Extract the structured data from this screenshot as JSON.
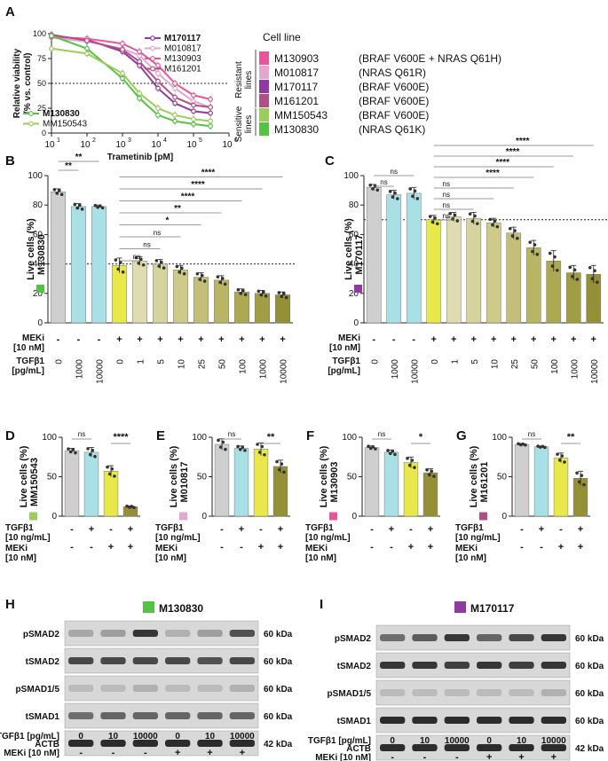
{
  "panel_letters": [
    "A",
    "B",
    "C",
    "D",
    "E",
    "F",
    "G",
    "H",
    "I"
  ],
  "colors": {
    "M130903": "#e8559a",
    "M010817": "#e0a8cf",
    "M170117": "#8e3aa0",
    "M161201": "#b04f85",
    "MM150543": "#9ccc5a",
    "M130830": "#56c245",
    "gray": "#cfcfcf",
    "cyan": "#a9e0e6",
    "yellow": "#e8e84a",
    "olive_light": "#d9d9a8",
    "olive_dark": "#8c8c34"
  },
  "legend": {
    "title": "Cell line",
    "resistant_label": "Resistant lines",
    "sensitive_label": "Sensitive lines",
    "entries": [
      {
        "name": "M130903",
        "mutation": "(BRAF V600E + NRAS Q61H)",
        "color": "#e8559a"
      },
      {
        "name": "M010817",
        "mutation": "(NRAS Q61R)",
        "color": "#e0a8cf"
      },
      {
        "name": "M170117",
        "mutation": "(BRAF V600E)",
        "color": "#8e3aa0"
      },
      {
        "name": "M161201",
        "mutation": "(BRAF V600E)",
        "color": "#b04f85"
      },
      {
        "name": "MM150543",
        "mutation": "(BRAF V600E)",
        "color": "#9ccc5a"
      },
      {
        "name": "M130830",
        "mutation": "(NRAS Q61K)",
        "color": "#56c245"
      }
    ]
  },
  "chart_data": [
    {
      "id": "A",
      "type": "line",
      "xlabel": "Trametinib [pM]",
      "ylabel": "Relative viability (% vs. control)",
      "x_scale": "log10",
      "xlim": [
        10,
        1000000
      ],
      "ylim": [
        0,
        100
      ],
      "xticks": [
        "10^1",
        "10^2",
        "10^3",
        "10^4",
        "10^5",
        "10^6"
      ],
      "yticks": [
        0,
        25,
        50,
        75,
        100
      ],
      "reference_line": 50,
      "series_labels_top": [
        "M170117",
        "M010817",
        "M130903",
        "M161201"
      ],
      "series_labels_bottom": [
        "M130830",
        "MM150543"
      ],
      "x": [
        10,
        100,
        1000,
        3000,
        10000,
        30000,
        100000,
        300000
      ],
      "series": [
        {
          "name": "M170117",
          "color": "#8e3aa0",
          "values": [
            98,
            94,
            82,
            68,
            45,
            30,
            22,
            20
          ]
        },
        {
          "name": "M010817",
          "color": "#e0a8cf",
          "values": [
            96,
            92,
            85,
            78,
            60,
            45,
            32,
            26
          ]
        },
        {
          "name": "M130903",
          "color": "#e8559a",
          "values": [
            97,
            95,
            90,
            82,
            68,
            50,
            38,
            34
          ]
        },
        {
          "name": "M161201",
          "color": "#b04f85",
          "values": [
            99,
            93,
            84,
            72,
            52,
            36,
            28,
            26
          ]
        },
        {
          "name": "M130830",
          "color": "#56c245",
          "values": [
            98,
            85,
            55,
            35,
            18,
            12,
            9,
            7
          ]
        },
        {
          "name": "MM150543",
          "color": "#9ccc5a",
          "values": [
            85,
            80,
            60,
            40,
            25,
            18,
            14,
            12
          ]
        }
      ]
    },
    {
      "id": "B",
      "type": "bar",
      "ylabel": "Live cells (%)",
      "cell_line": "M130830",
      "ylim": [
        0,
        100
      ],
      "yticks": [
        0,
        20,
        40,
        60,
        80,
        100
      ],
      "reference_line": 40,
      "row1_label": "MEKi [10 nM]",
      "row2_label": "TGFβ1 [pg/mL]",
      "meki": [
        "-",
        "-",
        "-",
        "+",
        "+",
        "+",
        "+",
        "+",
        "+",
        "+",
        "+",
        "+"
      ],
      "tgfb": [
        "0",
        "1000",
        "10000",
        "0",
        "1",
        "5",
        "10",
        "25",
        "50",
        "100",
        "1000",
        "10000"
      ],
      "values": [
        89,
        79,
        79,
        39,
        42,
        40,
        36,
        31,
        29,
        21,
        20,
        19
      ],
      "errors": [
        2,
        2,
        1,
        5,
        3,
        3,
        3,
        3,
        3,
        2,
        2,
        2
      ],
      "bar_colors": [
        "#cfcfcf",
        "#a9e0e6",
        "#a9e0e6",
        "#e8e84a",
        "#dedcb0",
        "#d6d49e",
        "#cdca8a",
        "#c3bf78",
        "#b8b565",
        "#aca953",
        "#a09d45",
        "#949037"
      ],
      "significance": [
        "**",
        "**",
        "ns",
        "ns",
        "ns",
        "*",
        "**",
        "****",
        "****",
        "****"
      ]
    },
    {
      "id": "C",
      "type": "bar",
      "ylabel": "Live cells (%)",
      "cell_line": "M170117",
      "ylim": [
        0,
        100
      ],
      "yticks": [
        0,
        20,
        40,
        60,
        80,
        100
      ],
      "reference_line": 70,
      "row1_label": "MEKi [10 nM]",
      "row2_label": "TGFβ1 [pg/mL]",
      "meki": [
        "-",
        "-",
        "-",
        "+",
        "+",
        "+",
        "+",
        "+",
        "+",
        "+",
        "+",
        "+"
      ],
      "tgfb": [
        "0",
        "1000",
        "10000",
        "0",
        "1",
        "5",
        "10",
        "25",
        "50",
        "100",
        "1000",
        "10000"
      ],
      "values": [
        92,
        87,
        88,
        70,
        72,
        71,
        68,
        61,
        51,
        42,
        34,
        33
      ],
      "errors": [
        2,
        3,
        4,
        3,
        3,
        4,
        3,
        4,
        5,
        7,
        5,
        6
      ],
      "bar_colors": [
        "#cfcfcf",
        "#a9e0e6",
        "#a9e0e6",
        "#e8e84a",
        "#dedcb0",
        "#d6d49e",
        "#cdca8a",
        "#c3bf78",
        "#b8b565",
        "#aca953",
        "#a09d45",
        "#949037"
      ],
      "significance": [
        "ns",
        "ns",
        "ns",
        "ns",
        "ns",
        "ns",
        "****",
        "****",
        "****",
        "****"
      ]
    },
    {
      "id": "D",
      "type": "bar",
      "ylabel": "Live cells (%)",
      "cell_line": "MM150543",
      "ylim": [
        0,
        100
      ],
      "yticks": [
        0,
        50,
        100
      ],
      "row1_label": "TGFβ1 [10 ng/mL]",
      "row2_label": "MEKi [10 nM]",
      "tgfb": [
        "-",
        "+",
        "-",
        "+"
      ],
      "meki": [
        "-",
        "-",
        "+",
        "+"
      ],
      "values": [
        83,
        81,
        57,
        12
      ],
      "errors": [
        3,
        6,
        7,
        1
      ],
      "bar_colors": [
        "#cfcfcf",
        "#a9e0e6",
        "#e8e84a",
        "#949037"
      ],
      "significance": [
        "ns",
        "****"
      ]
    },
    {
      "id": "E",
      "type": "bar",
      "ylabel": "Live cells (%)",
      "cell_line": "M010817",
      "ylim": [
        0,
        100
      ],
      "yticks": [
        0,
        50,
        100
      ],
      "row1_label": "TGFβ1 [10 ng/mL]",
      "row2_label": "MEKi [10 nM]",
      "tgfb": [
        "-",
        "+",
        "-",
        "+"
      ],
      "meki": [
        "-",
        "-",
        "+",
        "+"
      ],
      "values": [
        91,
        86,
        85,
        63
      ],
      "errors": [
        7,
        3,
        8,
        8
      ],
      "bar_colors": [
        "#cfcfcf",
        "#a9e0e6",
        "#e8e84a",
        "#949037"
      ],
      "significance": [
        "ns",
        "**"
      ]
    },
    {
      "id": "F",
      "type": "bar",
      "ylabel": "Live cells (%)",
      "cell_line": "M130903",
      "ylim": [
        0,
        100
      ],
      "yticks": [
        0,
        50,
        100
      ],
      "row1_label": "TGFβ1 [10 ng/mL]",
      "row2_label": "MEKi [10 nM]",
      "tgfb": [
        "-",
        "+",
        "-",
        "+"
      ],
      "meki": [
        "-",
        "-",
        "+",
        "+"
      ],
      "values": [
        87,
        81,
        68,
        55
      ],
      "errors": [
        2,
        3,
        7,
        5
      ],
      "bar_colors": [
        "#cfcfcf",
        "#a9e0e6",
        "#e8e84a",
        "#949037"
      ],
      "significance": [
        "ns",
        "*"
      ]
    },
    {
      "id": "G",
      "type": "bar",
      "ylabel": "Live cells (%)",
      "cell_line": "M161201",
      "ylim": [
        0,
        100
      ],
      "yticks": [
        0,
        50,
        100
      ],
      "row1_label": "TGFβ1 [10 ng/mL]",
      "row2_label": "MEKi [10 nM]",
      "tgfb": [
        "-",
        "+",
        "-",
        "+"
      ],
      "meki": [
        "-",
        "-",
        "+",
        "+"
      ],
      "values": [
        91,
        88,
        74,
        48
      ],
      "errors": [
        1,
        1,
        6,
        9
      ],
      "bar_colors": [
        "#cfcfcf",
        "#a9e0e6",
        "#e8e84a",
        "#949037"
      ],
      "significance": [
        "ns",
        "**"
      ]
    }
  ],
  "blots": [
    {
      "id": "H",
      "cell_line": "M130830",
      "color": "#56c245",
      "rows": [
        {
          "label": "pSMAD2",
          "kda": "60 kDa"
        },
        {
          "label": "tSMAD2",
          "kda": "60 kDa"
        },
        {
          "label": "pSMAD1/5",
          "kda": "60 kDa"
        },
        {
          "label": "tSMAD1",
          "kda": "60 kDa"
        },
        {
          "label": "ACTB",
          "kda": "42 kDa"
        }
      ],
      "lane_intensity": [
        [
          0.25,
          0.3,
          0.85,
          0.2,
          0.3,
          0.7
        ],
        [
          0.75,
          0.75,
          0.75,
          0.75,
          0.7,
          0.75
        ],
        [
          0.15,
          0.15,
          0.2,
          0.15,
          0.15,
          0.2
        ],
        [
          0.55,
          0.6,
          0.6,
          0.6,
          0.6,
          0.6
        ],
        [
          0.9,
          0.9,
          0.9,
          0.9,
          0.9,
          0.9
        ]
      ],
      "tgfb_label": "TGFβ1 [pg/mL]",
      "meki_label": "MEKi [10 nM]",
      "tgfb": [
        "0",
        "10",
        "10000",
        "0",
        "10",
        "10000"
      ],
      "meki": [
        "-",
        "-",
        "-",
        "+",
        "+",
        "+"
      ]
    },
    {
      "id": "I",
      "cell_line": "M170117",
      "color": "#8e3aa0",
      "rows": [
        {
          "label": "pSMAD2",
          "kda": "60 kDa"
        },
        {
          "label": "tSMAD2",
          "kda": "60 kDa"
        },
        {
          "label": "pSMAD1/5",
          "kda": "60 kDa"
        },
        {
          "label": "tSMAD1",
          "kda": "60 kDa"
        },
        {
          "label": "ACTB",
          "kda": "42 kDa"
        }
      ],
      "lane_intensity": [
        [
          0.55,
          0.65,
          0.85,
          0.6,
          0.75,
          0.85
        ],
        [
          0.85,
          0.85,
          0.8,
          0.85,
          0.8,
          0.85
        ],
        [
          0.15,
          0.15,
          0.15,
          0.15,
          0.15,
          0.2
        ],
        [
          0.9,
          0.9,
          0.9,
          0.9,
          0.9,
          0.9
        ],
        [
          0.9,
          0.9,
          0.9,
          0.9,
          0.9,
          0.9
        ]
      ],
      "tgfb_label": "TGFβ1 [pg/mL]",
      "meki_label": "MEKi [10 nM]",
      "tgfb": [
        "0",
        "10",
        "10000",
        "0",
        "10",
        "10000"
      ],
      "meki": [
        "-",
        "-",
        "-",
        "+",
        "+",
        "+"
      ]
    }
  ]
}
